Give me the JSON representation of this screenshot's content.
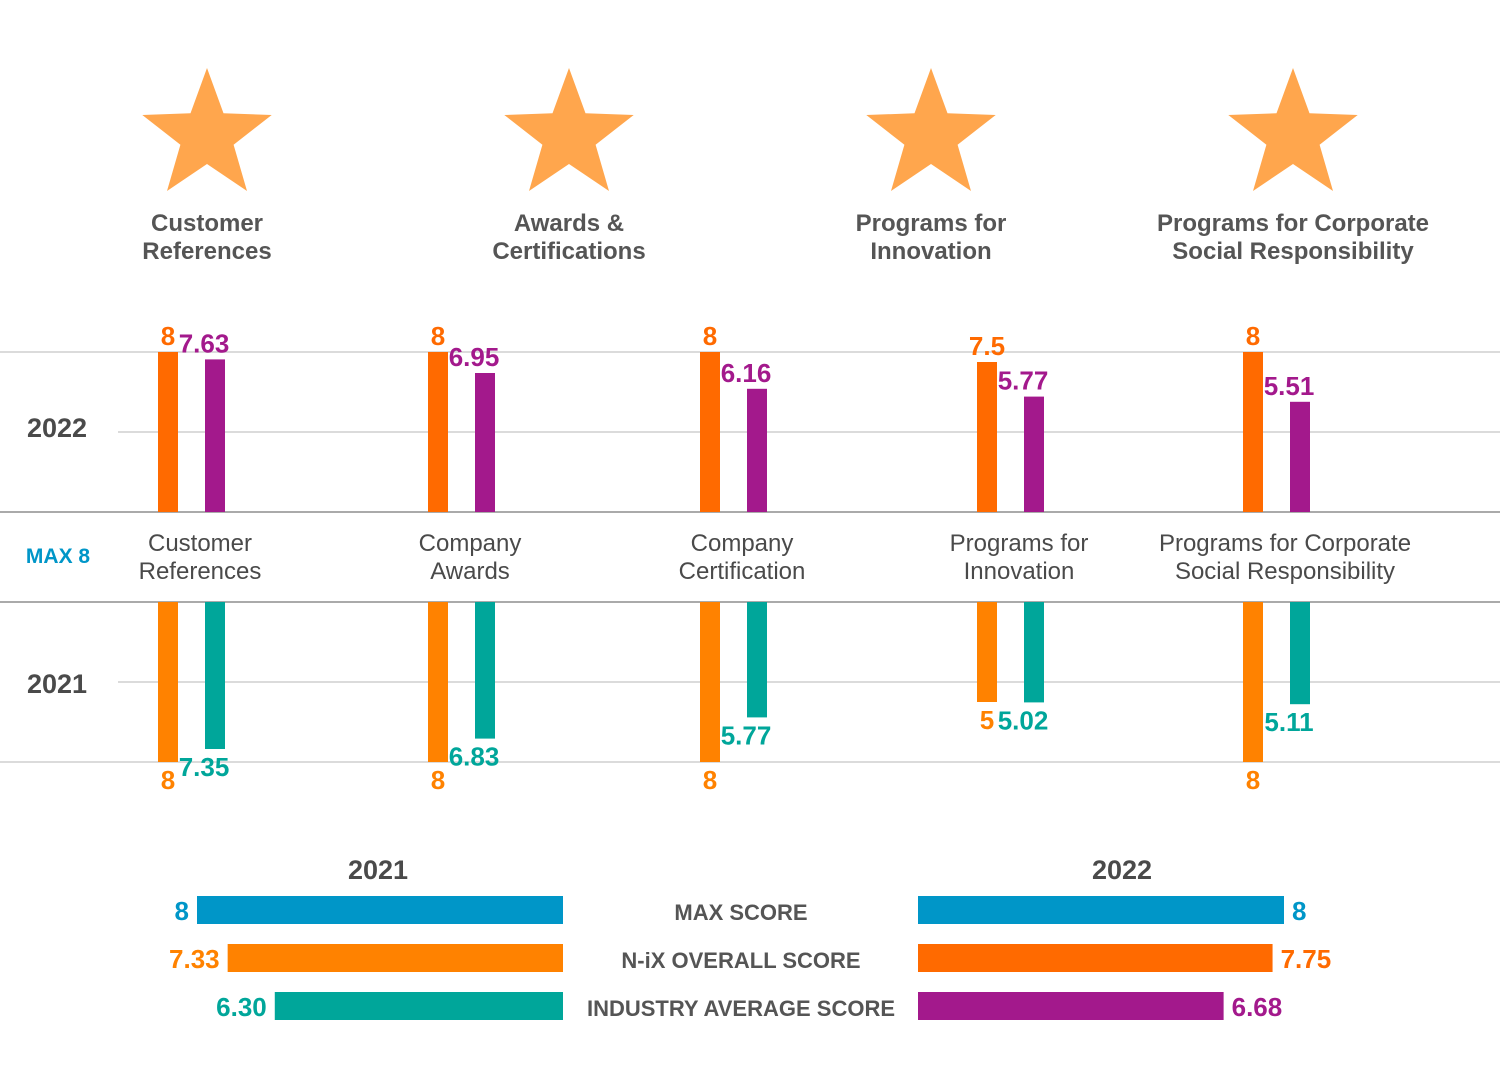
{
  "colors": {
    "star": "#ffa64d",
    "nix_2022": "#ff6a00",
    "nix_2021": "#ff8200",
    "industry_2022": "#a3198c",
    "industry_2021": "#00a69a",
    "max": "#0096c8",
    "text": "#4a4a4a",
    "grid": "#cfcfcf"
  },
  "chart_data": [
    {
      "type": "bar",
      "star_categories": [
        [
          "Customer",
          "References"
        ],
        [
          "Awards &",
          "Certifications"
        ],
        [
          "Programs for",
          "Innovation"
        ],
        [
          "Programs for Corporate",
          "Social Responsibility"
        ]
      ],
      "categories": [
        [
          "Customer",
          "References"
        ],
        [
          "Company",
          "Awards"
        ],
        [
          "Company",
          "Certification"
        ],
        [
          "Programs for",
          "Innovation"
        ],
        [
          "Programs for Corporate",
          "Social Responsibility"
        ]
      ],
      "axis_label": "MAX 8",
      "ylim": [
        0,
        8
      ],
      "rows": [
        {
          "year": "2022",
          "direction": "up",
          "nix": [
            "8",
            "8",
            "8",
            "7.5",
            "8"
          ],
          "industry": [
            "7.63",
            "6.95",
            "6.16",
            "5.77",
            "5.51"
          ]
        },
        {
          "year": "2021",
          "direction": "down",
          "nix": [
            "8",
            "8",
            "8",
            "5",
            "8"
          ],
          "industry": [
            "7.35",
            "6.83",
            "5.77",
            "5.02",
            "5.11"
          ]
        }
      ]
    },
    {
      "type": "bar",
      "orientation": "horizontal",
      "metrics": [
        "MAX SCORE",
        "N-iX OVERALL SCORE",
        "INDUSTRY AVERAGE SCORE"
      ],
      "xlim": [
        0,
        8
      ],
      "series": [
        {
          "name": "2021",
          "values": [
            "8",
            "7.33",
            "6.30"
          ]
        },
        {
          "name": "2022",
          "values": [
            "8",
            "7.75",
            "6.68"
          ]
        }
      ]
    }
  ]
}
